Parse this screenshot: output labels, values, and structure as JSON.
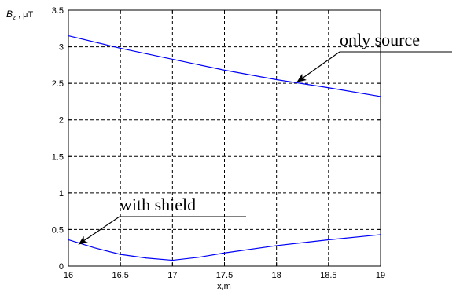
{
  "chart_data": {
    "type": "line",
    "ylabel": "B_z , μT",
    "xlabel": "x,m",
    "xlim": [
      16,
      19
    ],
    "ylim": [
      0,
      3.5
    ],
    "xticks": [
      "16",
      "16.5",
      "17",
      "17.5",
      "18",
      "18.5",
      "19"
    ],
    "yticks": [
      "0",
      "0.5",
      "1",
      "1.5",
      "2",
      "2.5",
      "3",
      "3.5"
    ],
    "grid": true,
    "series": [
      {
        "name": "only source",
        "color": "#0000ff",
        "x": [
          16,
          16.5,
          17,
          17.5,
          18,
          18.5,
          19
        ],
        "y": [
          3.15,
          2.98,
          2.83,
          2.68,
          2.55,
          2.44,
          2.32
        ]
      },
      {
        "name": "with shield",
        "color": "#0000ff",
        "x": [
          16,
          16.25,
          16.5,
          16.75,
          17,
          17.25,
          17.5,
          18,
          18.5,
          19
        ],
        "y": [
          0.36,
          0.25,
          0.16,
          0.11,
          0.08,
          0.12,
          0.18,
          0.28,
          0.36,
          0.43
        ]
      }
    ],
    "annotations": [
      {
        "text": "only source",
        "series": 0,
        "point_x": 18.2,
        "point_y": 2.52
      },
      {
        "text": "with shield",
        "series": 1,
        "point_x": 16.1,
        "point_y": 0.3
      }
    ]
  }
}
